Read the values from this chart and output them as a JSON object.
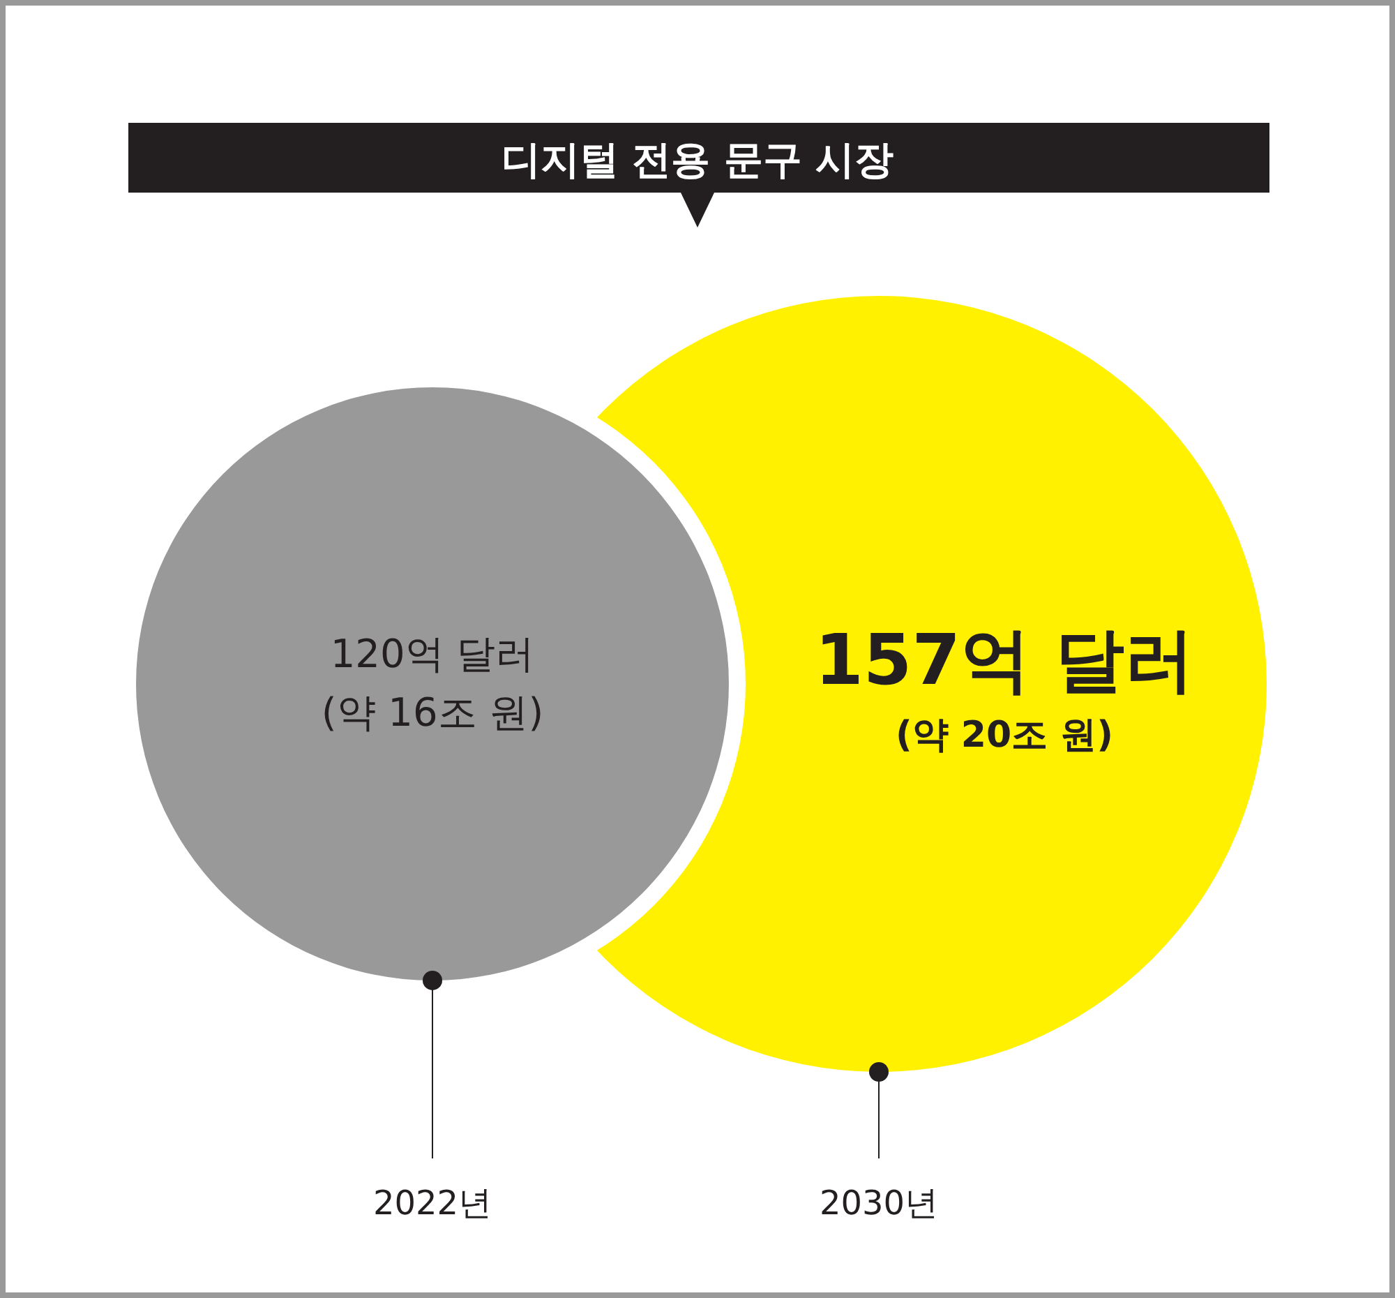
{
  "chart_data": {
    "type": "other",
    "title": "디지털 전용 문구 시장",
    "categories": [
      "2022년",
      "2030년"
    ],
    "values": [
      120,
      157
    ],
    "value_labels": [
      "120억 달러",
      "157억 달러"
    ],
    "colors": [
      "#999999",
      "#fff100"
    ],
    "annotations": [
      {
        "text": "(약 16조 원)",
        "x": "2022년"
      },
      {
        "text": "(약 20조 원)",
        "x": "2030년"
      }
    ]
  }
}
